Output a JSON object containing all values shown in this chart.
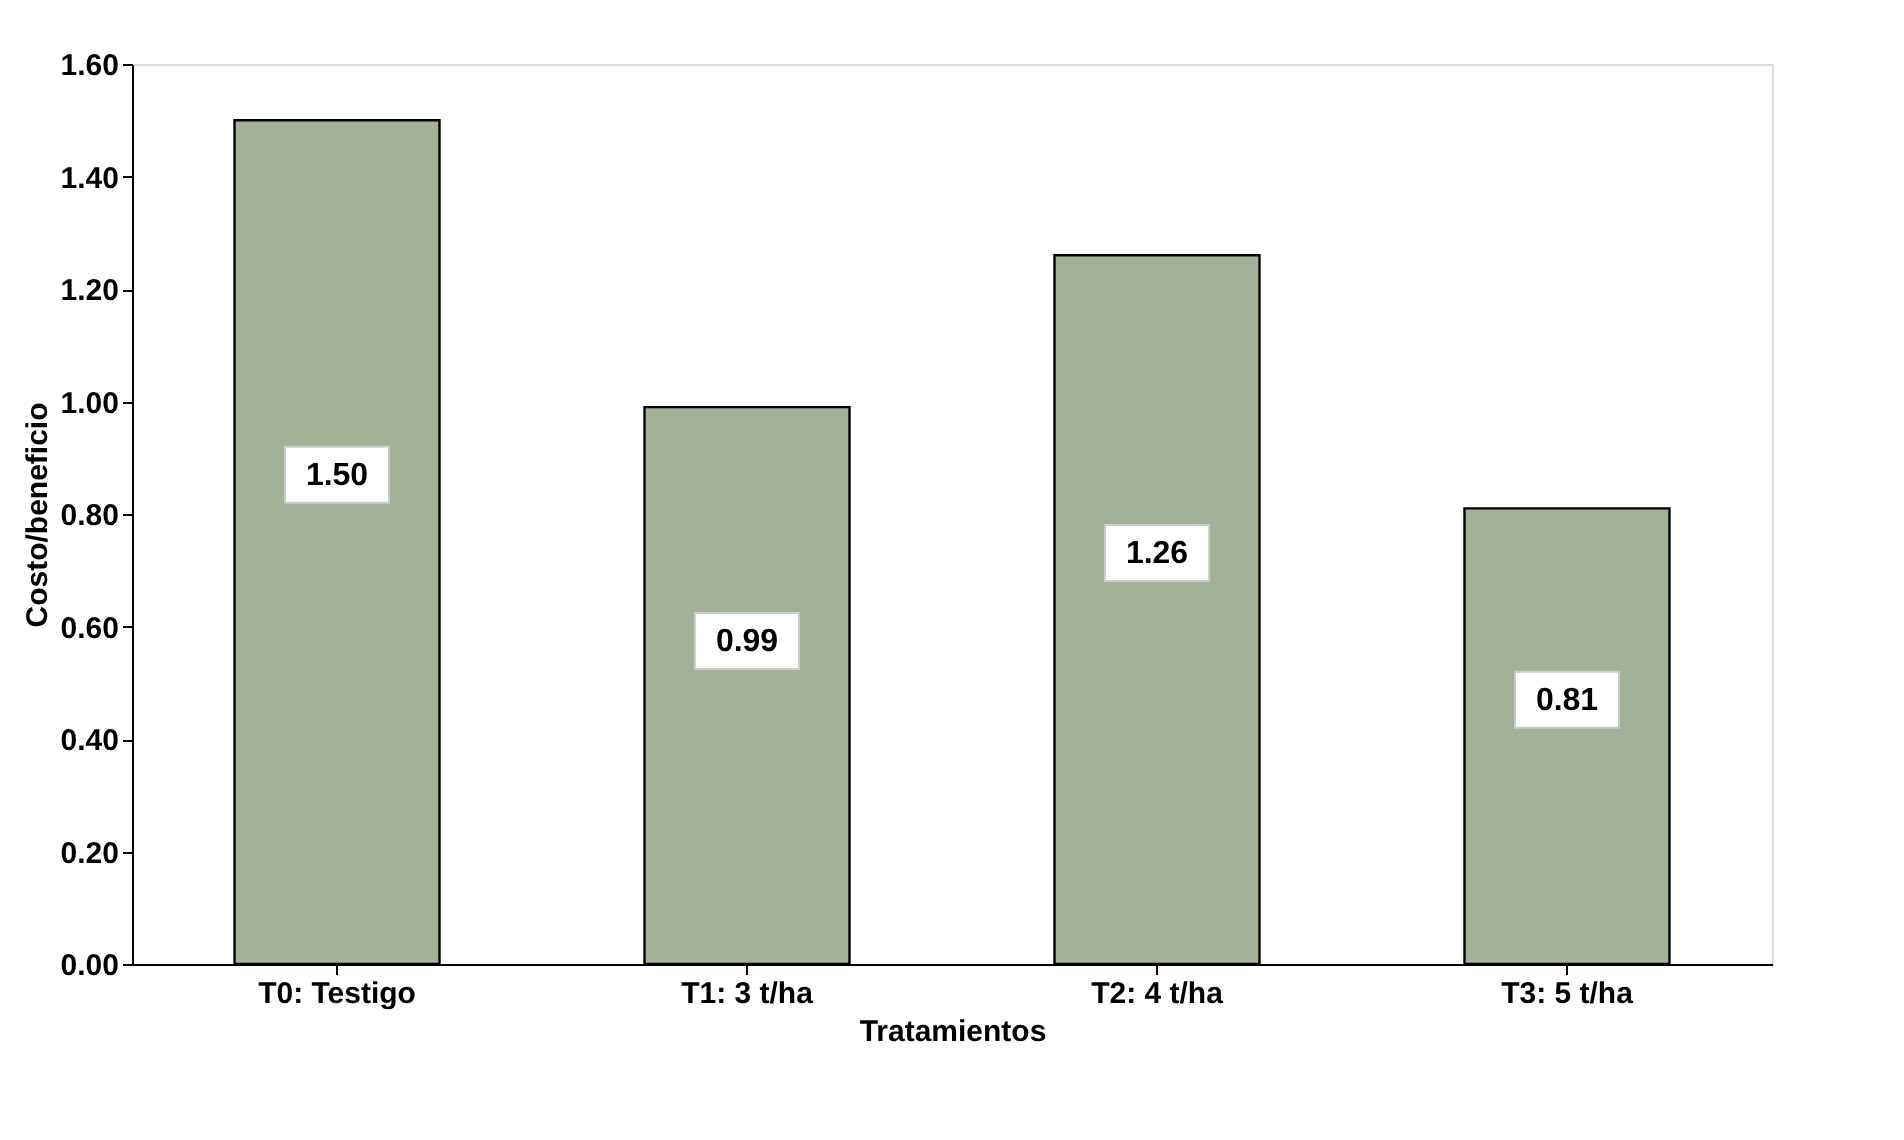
{
  "chart_data": {
    "type": "bar",
    "xlabel": "Tratamientos",
    "ylabel": "Costo/beneficio",
    "categories": [
      "T0: Testigo",
      "T1: 3 t/ha",
      "T2: 4 t/ha",
      "T3: 5 t/ha"
    ],
    "values": [
      1.5,
      0.99,
      1.26,
      0.81
    ],
    "value_labels": [
      "1.50",
      "0.99",
      "1.26",
      "0.81"
    ],
    "color": "#a3b199",
    "ylim": [
      0,
      1.6
    ],
    "yticks": [
      {
        "value": 0,
        "label": "0.00"
      },
      {
        "value": 0.2,
        "label": "0.20"
      },
      {
        "value": 0.4,
        "label": "0.40"
      },
      {
        "value": 0.6,
        "label": "0.60"
      },
      {
        "value": 0.8,
        "label": "0.80"
      },
      {
        "value": 1.0,
        "label": "1.00"
      },
      {
        "value": 1.2,
        "label": "1.20"
      },
      {
        "value": 1.4,
        "label": "1.40"
      },
      {
        "value": 1.6,
        "label": "1.60"
      }
    ],
    "grid": false
  }
}
